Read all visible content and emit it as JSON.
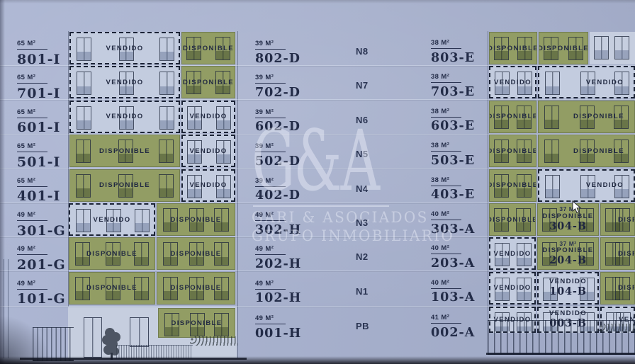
{
  "status_labels": {
    "sold": "VENDIDO",
    "available": "DISPONIBLE"
  },
  "colors": {
    "background": "#a9b3d1",
    "available_green": "#929d64",
    "sold_tile": "#c3ccdf",
    "dash_ink": "#1b2336",
    "text_ink": "#232c48"
  },
  "watermark": {
    "logo": "G&A",
    "line1": "GARI & ASOCIADOS",
    "line2": "GRUPO INMOBILIARIO"
  },
  "left_units": [
    {
      "area": "65 M²",
      "code": "801-I"
    },
    {
      "area": "65 M²",
      "code": "701-I"
    },
    {
      "area": "65 M²",
      "code": "601-I"
    },
    {
      "area": "65 M²",
      "code": "501-I"
    },
    {
      "area": "65 M²",
      "code": "401-I"
    },
    {
      "area": "49 M²",
      "code": "301-G"
    },
    {
      "area": "49 M²",
      "code": "201-G"
    },
    {
      "area": "49 M²",
      "code": "101-G"
    }
  ],
  "mid_left_units": [
    {
      "area": "39 M²",
      "code": "802-D"
    },
    {
      "area": "39 M²",
      "code": "702-D"
    },
    {
      "area": "39 M²",
      "code": "602-D"
    },
    {
      "area": "39 M²",
      "code": "502-D"
    },
    {
      "area": "39 M²",
      "code": "402-D"
    },
    {
      "area": "49 M²",
      "code": "302-H"
    },
    {
      "area": "49 M²",
      "code": "202-H"
    },
    {
      "area": "49 M²",
      "code": "102-H"
    },
    {
      "area": "49 M²",
      "code": "001-H"
    }
  ],
  "floor_numbers": [
    "N8",
    "N7",
    "N6",
    "N5",
    "N4",
    "N3",
    "N2",
    "N1",
    "PB"
  ],
  "mid_right_units": [
    {
      "area": "38 M²",
      "code": "803-E"
    },
    {
      "area": "38 M²",
      "code": "703-E"
    },
    {
      "area": "38 M²",
      "code": "603-E"
    },
    {
      "area": "38 M²",
      "code": "503-E"
    },
    {
      "area": "38 M²",
      "code": "403-E"
    },
    {
      "area": "40 M²",
      "code": "303-A"
    },
    {
      "area": "40 M²",
      "code": "203-A"
    },
    {
      "area": "40 M²",
      "code": "103-A"
    },
    {
      "area": "41 M²",
      "code": "002-A"
    }
  ],
  "left_building_rows": [
    [
      {
        "status": "sold"
      },
      {
        "status": "available"
      }
    ],
    [
      {
        "status": "sold"
      },
      {
        "status": "available"
      }
    ],
    [
      {
        "status": "sold"
      },
      {
        "status": "sold"
      }
    ],
    [
      {
        "status": "available"
      },
      {
        "status": "sold"
      }
    ],
    [
      {
        "status": "available"
      },
      {
        "status": "sold"
      }
    ],
    [
      {
        "status": "sold"
      },
      {
        "status": "available"
      }
    ],
    [
      {
        "status": "available"
      },
      {
        "status": "available"
      }
    ],
    [
      {
        "status": "available"
      },
      {
        "status": "available"
      }
    ]
  ],
  "left_ground_unit": {
    "status": "available"
  },
  "right_building_rows": [
    [
      {
        "status": "available"
      },
      {
        "status": "available"
      },
      {
        "status": "blank"
      }
    ],
    [
      {
        "status": "sold"
      },
      {
        "status": "sold",
        "tpos": "right"
      }
    ],
    [
      {
        "status": "available"
      },
      {
        "status": "available",
        "tpos": "right"
      }
    ],
    [
      {
        "status": "available"
      },
      {
        "status": "available",
        "tpos": "right"
      }
    ],
    [
      {
        "status": "available"
      },
      {
        "status": "sold",
        "tpos": "right"
      }
    ],
    [
      {
        "status": "available"
      },
      {
        "status": "available",
        "area": "37 M²",
        "code": "304-B"
      },
      {
        "status": "available",
        "tpos": "cut"
      }
    ],
    [
      {
        "status": "sold"
      },
      {
        "status": "available",
        "area": "37 M²",
        "code": "204-B"
      },
      {
        "status": "available",
        "tpos": "cut"
      }
    ],
    [
      {
        "status": "sold"
      },
      {
        "status": "sold",
        "code": "104-B"
      },
      {
        "status": "available",
        "tpos": "cut"
      }
    ],
    [
      {
        "status": "sold"
      },
      {
        "status": "sold",
        "code": "003-B"
      },
      {
        "status": "sold",
        "tpos": "cut"
      }
    ]
  ]
}
